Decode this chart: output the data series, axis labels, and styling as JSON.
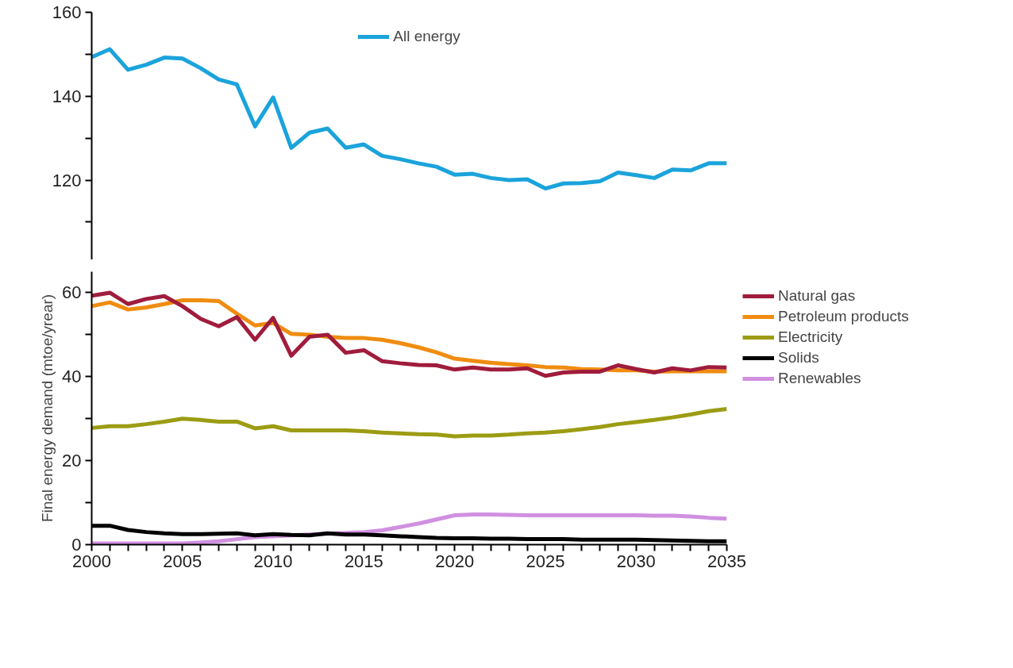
{
  "chart_data": [
    {
      "type": "line",
      "x": [
        2000,
        2001,
        2002,
        2003,
        2004,
        2005,
        2006,
        2007,
        2008,
        2009,
        2010,
        2011,
        2012,
        2013,
        2014,
        2015,
        2016,
        2017,
        2018,
        2019,
        2020,
        2021,
        2022,
        2023,
        2024,
        2025,
        2026,
        2027,
        2028,
        2029,
        2030,
        2031,
        2032,
        2033,
        2034,
        2035
      ],
      "series": [
        {
          "name": "All energy",
          "color": "#1ba3db",
          "values": [
            149.3,
            151.2,
            146.3,
            147.5,
            149.2,
            149,
            146.7,
            144,
            142.8,
            132.8,
            139.7,
            127.7,
            131.3,
            132.3,
            127.7,
            128.5,
            125.8,
            125,
            124,
            123.2,
            121.3,
            121.5,
            120.5,
            120,
            120.2,
            118,
            119.2,
            119.3,
            119.7,
            121.8,
            121.2,
            120.5,
            122.5,
            122.3,
            124,
            124
          ]
        }
      ],
      "xlim": [
        2000,
        2035
      ],
      "ylim": [
        101,
        160
      ],
      "yticks": [
        {
          "value": 110,
          "label": null
        },
        120,
        {
          "value": 130,
          "label": null
        },
        140,
        {
          "value": 150,
          "label": null
        },
        160
      ],
      "tick_labels": "y",
      "legend": "top",
      "marker": "none",
      "line_style": "solid"
    },
    {
      "type": "line",
      "x": [
        2000,
        2001,
        2002,
        2003,
        2004,
        2005,
        2006,
        2007,
        2008,
        2009,
        2010,
        2011,
        2012,
        2013,
        2014,
        2015,
        2016,
        2017,
        2018,
        2019,
        2020,
        2021,
        2022,
        2023,
        2024,
        2025,
        2026,
        2027,
        2028,
        2029,
        2030,
        2031,
        2032,
        2033,
        2034,
        2035
      ],
      "ylabel": "Final energy demand (mtoe/yrear)",
      "series": [
        {
          "name": "Natural gas",
          "color": "#a01c3c",
          "values": [
            59.3,
            60,
            57.3,
            58.5,
            59.2,
            56.8,
            53.8,
            52,
            54.2,
            48.8,
            54,
            45,
            49.5,
            50,
            45.7,
            46.3,
            43.7,
            43.2,
            42.8,
            42.7,
            41.7,
            42.2,
            41.7,
            41.7,
            42,
            40.2,
            41,
            41.2,
            41.2,
            42.7,
            41.8,
            41,
            42,
            41.5,
            42.3,
            42.2
          ]
        },
        {
          "name": "Petroleum products",
          "color": "#f08c10",
          "values": [
            56.8,
            57.7,
            56,
            56.5,
            57.3,
            58.2,
            58.2,
            58,
            55,
            52.2,
            52.8,
            50.2,
            50,
            49.5,
            49.2,
            49.2,
            48.8,
            48,
            47,
            45.8,
            44.3,
            43.8,
            43.3,
            43,
            42.7,
            42.3,
            42.2,
            41.8,
            41.7,
            41.5,
            41.5,
            41.2,
            41.3,
            41.3,
            41.3,
            41.3
          ]
        },
        {
          "name": "Electricity",
          "color": "#9c9c14",
          "values": [
            27.8,
            28.2,
            28.2,
            28.7,
            29.3,
            30,
            29.7,
            29.3,
            29.3,
            27.7,
            28.2,
            27.2,
            27.2,
            27.2,
            27.2,
            27,
            26.7,
            26.5,
            26.3,
            26.2,
            25.8,
            26,
            26,
            26.2,
            26.5,
            26.7,
            27,
            27.5,
            28,
            28.7,
            29.2,
            29.7,
            30.3,
            31,
            31.8,
            32.3
          ]
        },
        {
          "name": "Solids",
          "color": "#000000",
          "values": [
            4.5,
            4.5,
            3.5,
            3,
            2.7,
            2.5,
            2.5,
            2.6,
            2.7,
            2.2,
            2.5,
            2.3,
            2.2,
            2.7,
            2.4,
            2.4,
            2.2,
            2,
            1.8,
            1.6,
            1.5,
            1.5,
            1.4,
            1.4,
            1.3,
            1.3,
            1.3,
            1.2,
            1.2,
            1.2,
            1.2,
            1.1,
            1,
            0.9,
            0.8,
            0.8
          ]
        },
        {
          "name": "Renewables",
          "color": "#d090e0",
          "values": [
            0.3,
            0.3,
            0.3,
            0.3,
            0.3,
            0.3,
            0.5,
            0.8,
            1.3,
            1.8,
            2,
            2.2,
            2.4,
            2.6,
            2.8,
            3,
            3.4,
            4.2,
            5,
            6,
            7,
            7.2,
            7.2,
            7.1,
            7,
            7,
            7,
            7,
            7,
            7,
            7,
            6.9,
            6.9,
            6.7,
            6.4,
            6.2
          ]
        }
      ],
      "xlim": [
        2000,
        2035
      ],
      "ylim": [
        0,
        65
      ],
      "xticks": [
        2000,
        {
          "value": 2001,
          "label": null
        },
        {
          "value": 2002,
          "label": null
        },
        {
          "value": 2003,
          "label": null
        },
        {
          "value": 2004,
          "label": null
        },
        2005,
        {
          "value": 2006,
          "label": null
        },
        {
          "value": 2007,
          "label": null
        },
        {
          "value": 2008,
          "label": null
        },
        {
          "value": 2009,
          "label": null
        },
        2010,
        {
          "value": 2011,
          "label": null
        },
        {
          "value": 2012,
          "label": null
        },
        {
          "value": 2013,
          "label": null
        },
        {
          "value": 2014,
          "label": null
        },
        2015,
        {
          "value": 2016,
          "label": null
        },
        {
          "value": 2017,
          "label": null
        },
        {
          "value": 2018,
          "label": null
        },
        {
          "value": 2019,
          "label": null
        },
        2020,
        {
          "value": 2021,
          "label": null
        },
        {
          "value": 2022,
          "label": null
        },
        {
          "value": 2023,
          "label": null
        },
        {
          "value": 2024,
          "label": null
        },
        2025,
        {
          "value": 2026,
          "label": null
        },
        {
          "value": 2027,
          "label": null
        },
        {
          "value": 2028,
          "label": null
        },
        {
          "value": 2029,
          "label": null
        },
        2030,
        {
          "value": 2031,
          "label": null
        },
        {
          "value": 2032,
          "label": null
        },
        {
          "value": 2033,
          "label": null
        },
        {
          "value": 2034,
          "label": null
        },
        2035
      ],
      "yticks": [
        0,
        {
          "value": 10,
          "label": null
        },
        20,
        {
          "value": 30,
          "label": null
        },
        40,
        {
          "value": 50,
          "label": null
        },
        60
      ],
      "legend": "right",
      "marker": "none",
      "line_style": "solid"
    }
  ]
}
